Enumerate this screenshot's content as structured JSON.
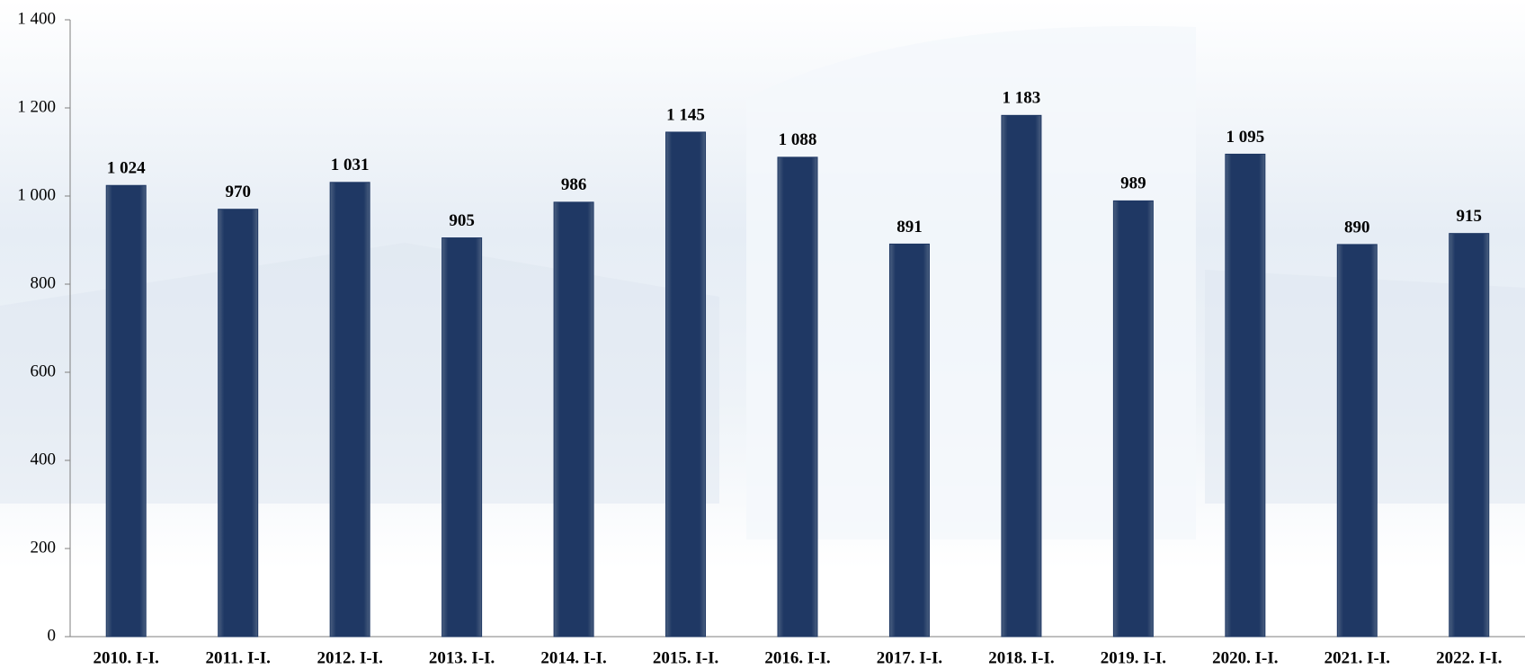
{
  "chart_data": {
    "type": "bar",
    "categories": [
      "2010. I-I.",
      "2011. I-I.",
      "2012. I-I.",
      "2013. I-I.",
      "2014. I-I.",
      "2015. I-I.",
      "2016. I-I.",
      "2017. I-I.",
      "2018. I-I.",
      "2019. I-I.",
      "2020. I-I.",
      "2021. I-I.",
      "2022. I-I."
    ],
    "values": [
      1024,
      970,
      1031,
      905,
      986,
      1145,
      1088,
      891,
      1183,
      989,
      1095,
      890,
      915
    ],
    "value_labels": [
      "1 024",
      "970",
      "1 031",
      "905",
      "986",
      "1 145",
      "1 088",
      "891",
      "1 183",
      "989",
      "1 095",
      "890",
      "915"
    ],
    "color": "#1f3864",
    "ylim": [
      0,
      1400
    ],
    "yticks": [
      0,
      200,
      400,
      600,
      800,
      {
        "value": 1000,
        "label": "1 000"
      },
      {
        "value": 1200,
        "label": "1 200"
      },
      {
        "value": 1400,
        "label": "1 400"
      }
    ],
    "grid": false
  }
}
